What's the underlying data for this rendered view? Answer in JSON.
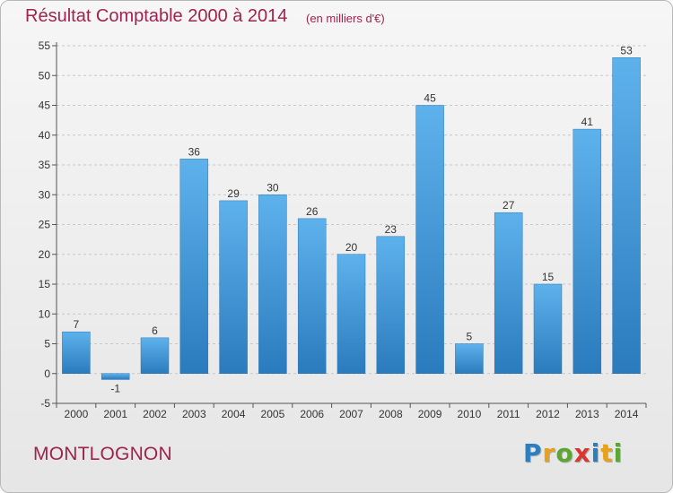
{
  "header": {
    "title": "Résultat Comptable 2000 à 2014",
    "subtitle": "(en milliers d'€)"
  },
  "footer": {
    "city": "MONTLOGNON",
    "brand": {
      "letters": [
        "P",
        "r",
        "o",
        "x",
        "i",
        "t",
        "i"
      ],
      "colors": [
        "#2a7fc1",
        "#e8a21a",
        "#5aa832",
        "#d9362f",
        "#2a7fc1",
        "#e8a21a",
        "#5aa832"
      ]
    }
  },
  "colors": {
    "bar_top": "#5eb2ec",
    "bar_bottom": "#2a7bbd",
    "text": "#333333",
    "grid": "#c8c8c8"
  },
  "chart_data": {
    "type": "bar",
    "categories": [
      "2000",
      "2001",
      "2002",
      "2003",
      "2004",
      "2005",
      "2006",
      "2007",
      "2008",
      "2009",
      "2010",
      "2011",
      "2012",
      "2013",
      "2014"
    ],
    "values": [
      7,
      -1,
      6,
      36,
      29,
      30,
      26,
      20,
      23,
      45,
      5,
      27,
      15,
      41,
      53
    ],
    "data_labels": [
      "7",
      "-1",
      "6",
      "36",
      "29",
      "30",
      "26",
      "20",
      "23",
      "45",
      "5",
      "27",
      "15",
      "41",
      "53"
    ],
    "ylim": [
      -5,
      55
    ],
    "yticks": [
      -5,
      0,
      5,
      10,
      15,
      20,
      25,
      30,
      35,
      40,
      45,
      50,
      55
    ],
    "ytick_labels": [
      "-5",
      "0",
      "5",
      "10",
      "15",
      "20",
      "25",
      "30",
      "35",
      "40",
      "45",
      "50",
      "55"
    ],
    "grid": "horizontal-dashed"
  }
}
